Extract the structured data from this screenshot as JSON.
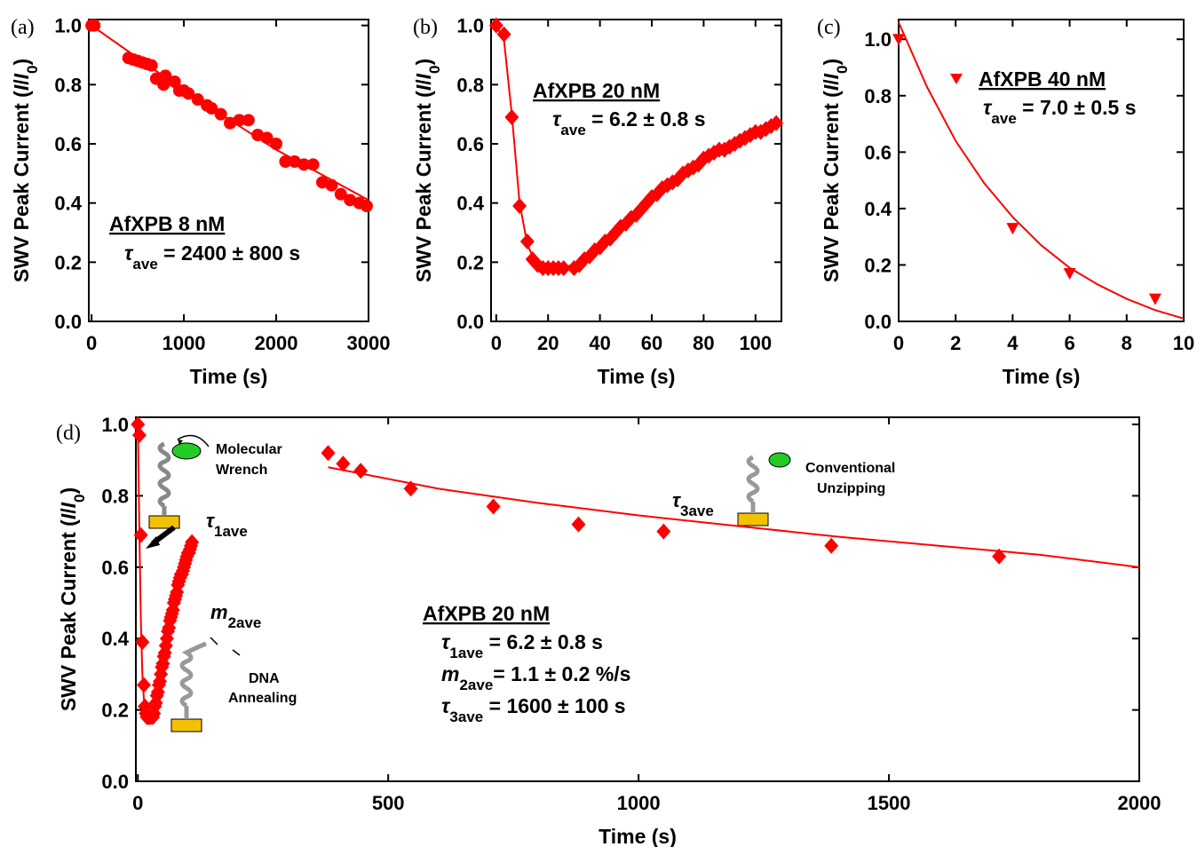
{
  "chart_data": [
    {
      "type": "scatter",
      "label": "(a)",
      "xlabel": "Time (s)",
      "ylabel": [
        {
          "text": "SWV Peak Current ("
        },
        {
          "text": "I",
          "style": "italic"
        },
        {
          "text": "/"
        },
        {
          "text": "I",
          "style": "italic"
        },
        {
          "text": "0",
          "style": "sub"
        },
        {
          "text": ")"
        }
      ],
      "xlim": [
        -30,
        3000
      ],
      "xticks": [
        0,
        1000,
        2000,
        3000
      ],
      "ylim": [
        0,
        1.02
      ],
      "yticks": [
        {
          "value": 0,
          "label": "0.0"
        },
        0.2,
        0.4,
        0.6,
        0.8,
        {
          "value": 1,
          "label": "1.0"
        }
      ],
      "series": [
        {
          "marker": "circle",
          "color": "#ff0000",
          "x": [
            0,
            30,
            400,
            450,
            500,
            550,
            600,
            650,
            700,
            730,
            780,
            800,
            900,
            950,
            1000,
            1050,
            1150,
            1250,
            1300,
            1400,
            1500,
            1600,
            1700,
            1800,
            1900,
            2000,
            2100,
            2200,
            2300,
            2400,
            2500,
            2600,
            2700,
            2800,
            2900,
            2980
          ],
          "values": [
            1.0,
            1.0,
            0.89,
            0.885,
            0.88,
            0.875,
            0.87,
            0.865,
            0.82,
            0.82,
            0.8,
            0.83,
            0.81,
            0.78,
            0.78,
            0.77,
            0.75,
            0.73,
            0.72,
            0.7,
            0.67,
            0.68,
            0.68,
            0.63,
            0.62,
            0.6,
            0.54,
            0.54,
            0.53,
            0.53,
            0.47,
            0.46,
            0.43,
            0.41,
            0.4,
            0.39
          ]
        },
        {
          "marker": "none",
          "color": "#ff0000",
          "x": [
            0,
            1000,
            2000,
            3000
          ],
          "values": [
            1.0,
            0.78,
            0.58,
            0.41
          ]
        }
      ],
      "annotations": [
        {
          "parts": [
            {
              "text": "AfXPB 8 nM"
            }
          ],
          "underline": true
        },
        {
          "parts": [
            {
              "text": "τ",
              "style": "italic"
            },
            {
              "text": "ave",
              "style": "sub"
            },
            {
              "text": " = 2400 ± 800 s"
            }
          ]
        }
      ]
    },
    {
      "type": "scatter",
      "label": "(b)",
      "xlabel": "Time (s)",
      "ylabel": [
        {
          "text": "SWV Peak Current ("
        },
        {
          "text": "I",
          "style": "italic"
        },
        {
          "text": "/"
        },
        {
          "text": "I",
          "style": "italic"
        },
        {
          "text": "0",
          "style": "sub"
        },
        {
          "text": ")"
        }
      ],
      "xlim": [
        -2,
        110
      ],
      "xticks": [
        0,
        20,
        40,
        60,
        80,
        100
      ],
      "ylim": [
        0,
        1.02
      ],
      "yticks": [
        {
          "value": 0,
          "label": "0.0"
        },
        0.2,
        0.4,
        0.6,
        0.8,
        {
          "value": 1,
          "label": "1.0"
        }
      ],
      "series": [
        {
          "marker": "diamond",
          "color": "#ff0000",
          "x": [
            0,
            3,
            6,
            9,
            12,
            14,
            16,
            18,
            20,
            22,
            24,
            26,
            30,
            32,
            34,
            36,
            38,
            40,
            42,
            44,
            46,
            48,
            50,
            52,
            54,
            56,
            58,
            60,
            62,
            64,
            66,
            68,
            70,
            72,
            74,
            76,
            78,
            80,
            82,
            84,
            86,
            88,
            90,
            92,
            94,
            96,
            98,
            100,
            102,
            104,
            106,
            108
          ],
          "values": [
            1.0,
            0.97,
            0.69,
            0.39,
            0.27,
            0.21,
            0.19,
            0.18,
            0.18,
            0.18,
            0.18,
            0.18,
            0.18,
            0.19,
            0.21,
            0.22,
            0.24,
            0.25,
            0.27,
            0.28,
            0.3,
            0.32,
            0.33,
            0.35,
            0.36,
            0.38,
            0.4,
            0.42,
            0.43,
            0.45,
            0.46,
            0.47,
            0.48,
            0.5,
            0.51,
            0.52,
            0.53,
            0.55,
            0.56,
            0.57,
            0.58,
            0.58,
            0.59,
            0.6,
            0.61,
            0.62,
            0.63,
            0.64,
            0.64,
            0.65,
            0.66,
            0.67
          ]
        },
        {
          "marker": "none",
          "color": "#ff0000",
          "x": [
            0,
            3,
            6,
            9,
            12,
            15,
            18,
            22,
            30,
            50,
            70,
            90,
            110
          ],
          "values": [
            1.0,
            0.95,
            0.7,
            0.4,
            0.26,
            0.2,
            0.18,
            0.18,
            0.19,
            0.33,
            0.48,
            0.59,
            0.68
          ]
        }
      ],
      "annotations": [
        {
          "parts": [
            {
              "text": "AfXPB 20 nM"
            }
          ],
          "underline": true
        },
        {
          "parts": [
            {
              "text": "τ",
              "style": "italic"
            },
            {
              "text": "ave",
              "style": "sub"
            },
            {
              "text": " = 6.2 ± 0.8 s"
            }
          ]
        }
      ]
    },
    {
      "type": "scatter",
      "label": "(c)",
      "xlabel": "Time (s)",
      "ylabel": [
        {
          "text": "SWV Peak Current ("
        },
        {
          "text": "I",
          "style": "italic"
        },
        {
          "text": "/"
        },
        {
          "text": "I",
          "style": "italic"
        },
        {
          "text": "0",
          "style": "sub"
        },
        {
          "text": ")"
        }
      ],
      "xlim": [
        0,
        10
      ],
      "xticks": [
        0,
        2,
        4,
        6,
        8,
        10
      ],
      "ylim": [
        0,
        1.07
      ],
      "yticks": [
        {
          "value": 0,
          "label": "0.0"
        },
        0.2,
        0.4,
        0.6,
        0.8,
        {
          "value": 1,
          "label": "1.0"
        }
      ],
      "series": [
        {
          "marker": "triangle-down",
          "color": "#ff0000",
          "x": [
            0,
            4,
            6,
            9
          ],
          "values": [
            1.0,
            0.33,
            0.17,
            0.08
          ]
        },
        {
          "marker": "none",
          "color": "#ff0000",
          "x": [
            0,
            1,
            2,
            3,
            4,
            5,
            6,
            7,
            8,
            9,
            10
          ],
          "values": [
            1.06,
            0.83,
            0.64,
            0.49,
            0.37,
            0.27,
            0.19,
            0.13,
            0.08,
            0.04,
            0.01
          ]
        }
      ],
      "annotations": [
        {
          "parts": [
            {
              "text": "AfXPB 40 nM"
            }
          ],
          "underline": true
        },
        {
          "parts": [
            {
              "text": "τ",
              "style": "italic"
            },
            {
              "text": "ave",
              "style": "sub"
            },
            {
              "text": " = 7.0 ± 0.5 s"
            }
          ]
        }
      ]
    },
    {
      "type": "scatter",
      "label": "(d)",
      "xlabel": "Time (s)",
      "ylabel": [
        {
          "text": "SWV Peak Current ("
        },
        {
          "text": "I",
          "style": "italic"
        },
        {
          "text": "/"
        },
        {
          "text": "I",
          "style": "italic"
        },
        {
          "text": "0",
          "style": "sub"
        },
        {
          "text": ")"
        }
      ],
      "xlim": [
        -4,
        2000
      ],
      "xticks": [
        0,
        500,
        1000,
        1500,
        2000
      ],
      "ylim": [
        0,
        1.02
      ],
      "yticks": [
        {
          "value": 0,
          "label": "0.0"
        },
        0.2,
        0.4,
        0.6,
        0.8,
        {
          "value": 1,
          "label": "1.0"
        }
      ],
      "series": [
        {
          "marker": "diamond",
          "color": "#ff0000",
          "x": [
            0,
            3,
            6,
            9,
            12,
            14,
            16,
            18,
            20,
            22,
            24,
            26,
            30,
            32,
            34,
            36,
            38,
            40,
            42,
            44,
            46,
            48,
            50,
            52,
            54,
            56,
            58,
            60,
            62,
            64,
            66,
            68,
            70,
            72,
            74,
            76,
            78,
            80,
            82,
            84,
            86,
            88,
            90,
            92,
            94,
            96,
            98,
            100,
            102,
            104,
            106,
            108,
            380,
            410,
            445,
            545,
            710,
            880,
            1050,
            1385,
            1720
          ],
          "values": [
            1.0,
            0.97,
            0.69,
            0.39,
            0.27,
            0.21,
            0.19,
            0.18,
            0.18,
            0.18,
            0.18,
            0.18,
            0.18,
            0.19,
            0.21,
            0.22,
            0.24,
            0.25,
            0.27,
            0.28,
            0.3,
            0.32,
            0.33,
            0.35,
            0.36,
            0.38,
            0.4,
            0.42,
            0.43,
            0.45,
            0.46,
            0.47,
            0.48,
            0.5,
            0.51,
            0.52,
            0.53,
            0.55,
            0.56,
            0.57,
            0.58,
            0.58,
            0.59,
            0.6,
            0.61,
            0.62,
            0.63,
            0.64,
            0.64,
            0.65,
            0.66,
            0.67,
            0.92,
            0.89,
            0.87,
            0.82,
            0.77,
            0.72,
            0.7,
            0.66,
            0.63
          ]
        },
        {
          "marker": "none",
          "color": "#ff0000",
          "x": [
            0,
            3,
            6,
            9,
            12,
            15,
            18
          ],
          "values": [
            1.0,
            0.7,
            0.45,
            0.3,
            0.23,
            0.2,
            0.19
          ]
        },
        {
          "marker": "none",
          "color": "#ff0000",
          "x": [
            380,
            600,
            800,
            1000,
            1200,
            1400,
            1600,
            1800,
            2000
          ],
          "values": [
            0.88,
            0.82,
            0.78,
            0.745,
            0.715,
            0.685,
            0.66,
            0.635,
            0.6
          ]
        }
      ],
      "annotations": [
        {
          "parts": [
            {
              "text": "Molecular"
            }
          ]
        },
        {
          "parts": [
            {
              "text": "Wrench"
            }
          ]
        },
        {
          "parts": [
            {
              "text": "τ",
              "style": "italic"
            },
            {
              "text": "1ave",
              "style": "sub"
            }
          ]
        },
        {
          "parts": [
            {
              "text": "m",
              "style": "italic"
            },
            {
              "text": "2ave",
              "style": "sub"
            }
          ]
        },
        {
          "parts": [
            {
              "text": "DNA"
            }
          ]
        },
        {
          "parts": [
            {
              "text": "Annealing"
            }
          ]
        },
        {
          "parts": [
            {
              "text": "τ",
              "style": "italic"
            },
            {
              "text": "3ave",
              "style": "sub"
            }
          ]
        },
        {
          "parts": [
            {
              "text": "Conventional"
            }
          ]
        },
        {
          "parts": [
            {
              "text": "Unzipping"
            }
          ]
        },
        {
          "parts": [
            {
              "text": "AfXPB 20 nM"
            }
          ],
          "underline": true
        },
        {
          "parts": [
            {
              "text": "τ",
              "style": "italic"
            },
            {
              "text": "1ave",
              "style": "sub"
            },
            {
              "text": " = 6.2 ± 0.8 s"
            }
          ]
        },
        {
          "parts": [
            {
              "text": "m",
              "style": "italic"
            },
            {
              "text": "2ave",
              "style": "sub"
            },
            {
              "text": "= 1.1 ± 0.2 %/s"
            }
          ]
        },
        {
          "parts": [
            {
              "text": "τ",
              "style": "italic"
            },
            {
              "text": "3ave",
              "style": "sub"
            },
            {
              "text": " = 1600 ± 100 s"
            }
          ]
        }
      ]
    }
  ]
}
